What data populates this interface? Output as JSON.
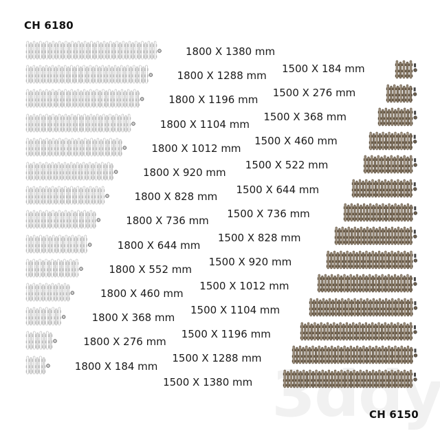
{
  "left_series": {
    "title": "CH 6180",
    "finish": "white",
    "color": "#e6e6e6",
    "sizes": [
      {
        "label": "1800 X 1380 mm",
        "width_mm": 1380
      },
      {
        "label": "1800 X 1288 mm",
        "width_mm": 1288
      },
      {
        "label": "1800 X 1196 mm",
        "width_mm": 1196
      },
      {
        "label": "1800 X 1104 mm",
        "width_mm": 1104
      },
      {
        "label": "1800 X 1012 mm",
        "width_mm": 1012
      },
      {
        "label": "1800 X 920 mm",
        "width_mm": 920
      },
      {
        "label": "1800 X 828 mm",
        "width_mm": 828
      },
      {
        "label": "1800 X 736 mm",
        "width_mm": 736
      },
      {
        "label": "1800 X 644 mm",
        "width_mm": 644
      },
      {
        "label": "1800 X 552 mm",
        "width_mm": 552
      },
      {
        "label": "1800 X 460 mm",
        "width_mm": 460
      },
      {
        "label": "1800 X 368 mm",
        "width_mm": 368
      },
      {
        "label": "1800 X 276 mm",
        "width_mm": 276
      },
      {
        "label": "1800 X 184 mm",
        "width_mm": 184
      }
    ]
  },
  "right_series": {
    "title": "CH 6150",
    "finish": "bronze",
    "color": "#8a7c6a",
    "sizes": [
      {
        "label": "1500 X 184 mm",
        "width_mm": 184
      },
      {
        "label": "1500 X 276 mm",
        "width_mm": 276
      },
      {
        "label": "1500 X 368 mm",
        "width_mm": 368
      },
      {
        "label": "1500 X 460 mm",
        "width_mm": 460
      },
      {
        "label": "1500 X 522 mm",
        "width_mm": 522
      },
      {
        "label": "1500 X 644 mm",
        "width_mm": 644
      },
      {
        "label": "1500 X 736 mm",
        "width_mm": 736
      },
      {
        "label": "1500 X 828 mm",
        "width_mm": 828
      },
      {
        "label": "1500 X 920 mm",
        "width_mm": 920
      },
      {
        "label": "1500 X 1012 mm",
        "width_mm": 1012
      },
      {
        "label": "1500 X 1104 mm",
        "width_mm": 1104
      },
      {
        "label": "1500 X 1196 mm",
        "width_mm": 1196
      },
      {
        "label": "1500 X 1288 mm",
        "width_mm": 1288
      },
      {
        "label": "1500 X 1380 mm",
        "width_mm": 1380
      }
    ]
  },
  "watermark": "3ddy"
}
